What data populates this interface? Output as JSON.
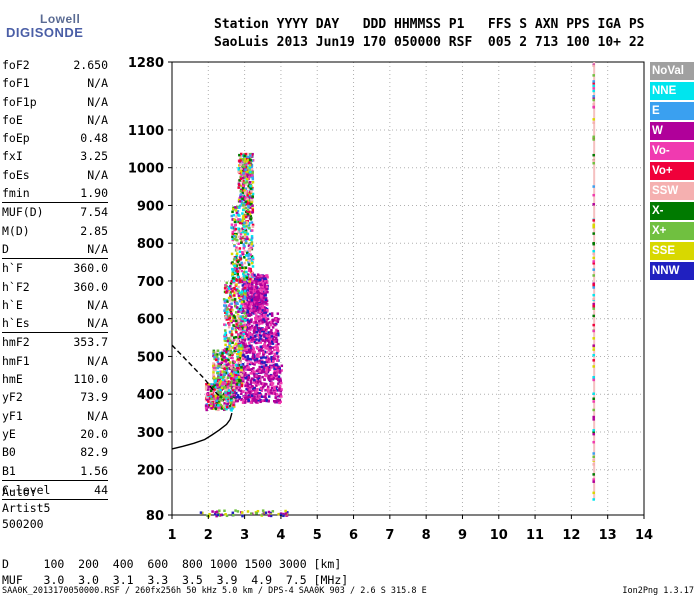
{
  "logo": {
    "top": "Lowell",
    "bottom": "DIGISONDE"
  },
  "header": {
    "line1": "Station YYYY DAY   DDD HHMMSS P1   FFS S AXN PPS IGA PS",
    "line2": "SaoLuis 2013 Jun19 170 050000 RSF  005 2 713 100 10+ 22"
  },
  "params": [
    {
      "name": "foF2",
      "value": "2.650"
    },
    {
      "name": "foF1",
      "value": "N/A"
    },
    {
      "name": "foF1p",
      "value": "N/A"
    },
    {
      "name": "foE",
      "value": "N/A"
    },
    {
      "name": "foEp",
      "value": "0.48"
    },
    {
      "name": "fxI",
      "value": "3.25"
    },
    {
      "name": "foEs",
      "value": "N/A"
    },
    {
      "name": "fmin",
      "value": "1.90",
      "sep_after": true
    },
    {
      "name": "MUF(D)",
      "value": "7.54"
    },
    {
      "name": "M(D)",
      "value": "2.85"
    },
    {
      "name": "D",
      "value": "N/A",
      "sep_after": true
    },
    {
      "name": "h`F",
      "value": "360.0"
    },
    {
      "name": "h`F2",
      "value": "360.0"
    },
    {
      "name": "h`E",
      "value": "N/A"
    },
    {
      "name": "h`Es",
      "value": "N/A",
      "sep_after": true
    },
    {
      "name": "hmF2",
      "value": "353.7"
    },
    {
      "name": "hmF1",
      "value": "N/A"
    },
    {
      "name": "hmE",
      "value": "110.0"
    },
    {
      "name": "yF2",
      "value": "73.9"
    },
    {
      "name": "yF1",
      "value": "N/A"
    },
    {
      "name": "yE",
      "value": "20.0"
    },
    {
      "name": "B0",
      "value": "82.9"
    },
    {
      "name": "B1",
      "value": "1.56",
      "sep_after": true
    },
    {
      "name": "C-level",
      "value": "44",
      "sep_after": true
    }
  ],
  "auto": {
    "line1": "Auto:",
    "line2": "Artist5",
    "line3": "500200"
  },
  "legend": [
    {
      "label": "NoVal",
      "color": "#a0a0a0"
    },
    {
      "label": "NNE",
      "color": "#00e5ee"
    },
    {
      "label": "E",
      "color": "#3aa0f0"
    },
    {
      "label": "W",
      "color": "#b0009a"
    },
    {
      "label": "Vo-",
      "color": "#f03ab0"
    },
    {
      "label": "Vo+",
      "color": "#f0003a"
    },
    {
      "label": "SSW",
      "color": "#f5b0b0"
    },
    {
      "label": "X-",
      "color": "#007a00"
    },
    {
      "label": "X+",
      "color": "#70c040"
    },
    {
      "label": "SSE",
      "color": "#d8d800"
    },
    {
      "label": "NNW",
      "color": "#2020c0"
    }
  ],
  "footer": {
    "line1": "D     100  200  400  600  800 1000 1500 3000 [km]",
    "line2": "MUF   3.0  3.0  3.1  3.3  3.5  3.9  4.9  7.5 [MHz]"
  },
  "filename": "SAA0K_2013170050000.RSF / 260fx256h 50 kHz 5.0 km / DPS-4 SAA0K 903 / 2.6 S 315.8 E",
  "version": "Ion2Png 1.3.17",
  "chart_data": {
    "type": "scatter",
    "xlim": [
      1,
      14
    ],
    "ylim": [
      80,
      1280
    ],
    "x_ticks": [
      1,
      2,
      3,
      4,
      5,
      6,
      7,
      8,
      9,
      10,
      11,
      12,
      13,
      14
    ],
    "y_ticks": [
      80,
      200,
      300,
      400,
      500,
      600,
      700,
      800,
      900,
      1000,
      1100,
      1280
    ],
    "grid": true,
    "traces": [
      {
        "name": "X-mode trace",
        "style": "dashed",
        "x": [
          1.0,
          1.3,
          1.6,
          1.9,
          2.1,
          2.25,
          2.35
        ],
        "y": [
          530,
          500,
          470,
          440,
          415,
          400,
          392
        ]
      },
      {
        "name": "profile",
        "style": "solid",
        "x": [
          1.0,
          1.3,
          1.6,
          1.9,
          2.1,
          2.3,
          2.5,
          2.6,
          2.65
        ],
        "y": [
          255,
          262,
          270,
          280,
          292,
          305,
          320,
          333,
          350
        ]
      }
    ],
    "echo_region": {
      "main_o": [
        [
          1.9,
          2.7,
          360,
          430
        ],
        [
          2.1,
          2.9,
          420,
          520
        ],
        [
          2.4,
          3.0,
          520,
          700
        ],
        [
          2.6,
          3.2,
          700,
          900
        ],
        [
          2.8,
          3.2,
          900,
          1040
        ]
      ],
      "main_x": [
        [
          2.6,
          4.0,
          380,
          480
        ],
        [
          2.8,
          3.9,
          480,
          620
        ],
        [
          2.9,
          3.6,
          620,
          720
        ]
      ],
      "ground": [
        [
          1.6,
          4.2,
          80,
          95
        ]
      ],
      "right_column": [
        [
          12.55,
          12.7,
          120,
          1280
        ]
      ]
    }
  }
}
